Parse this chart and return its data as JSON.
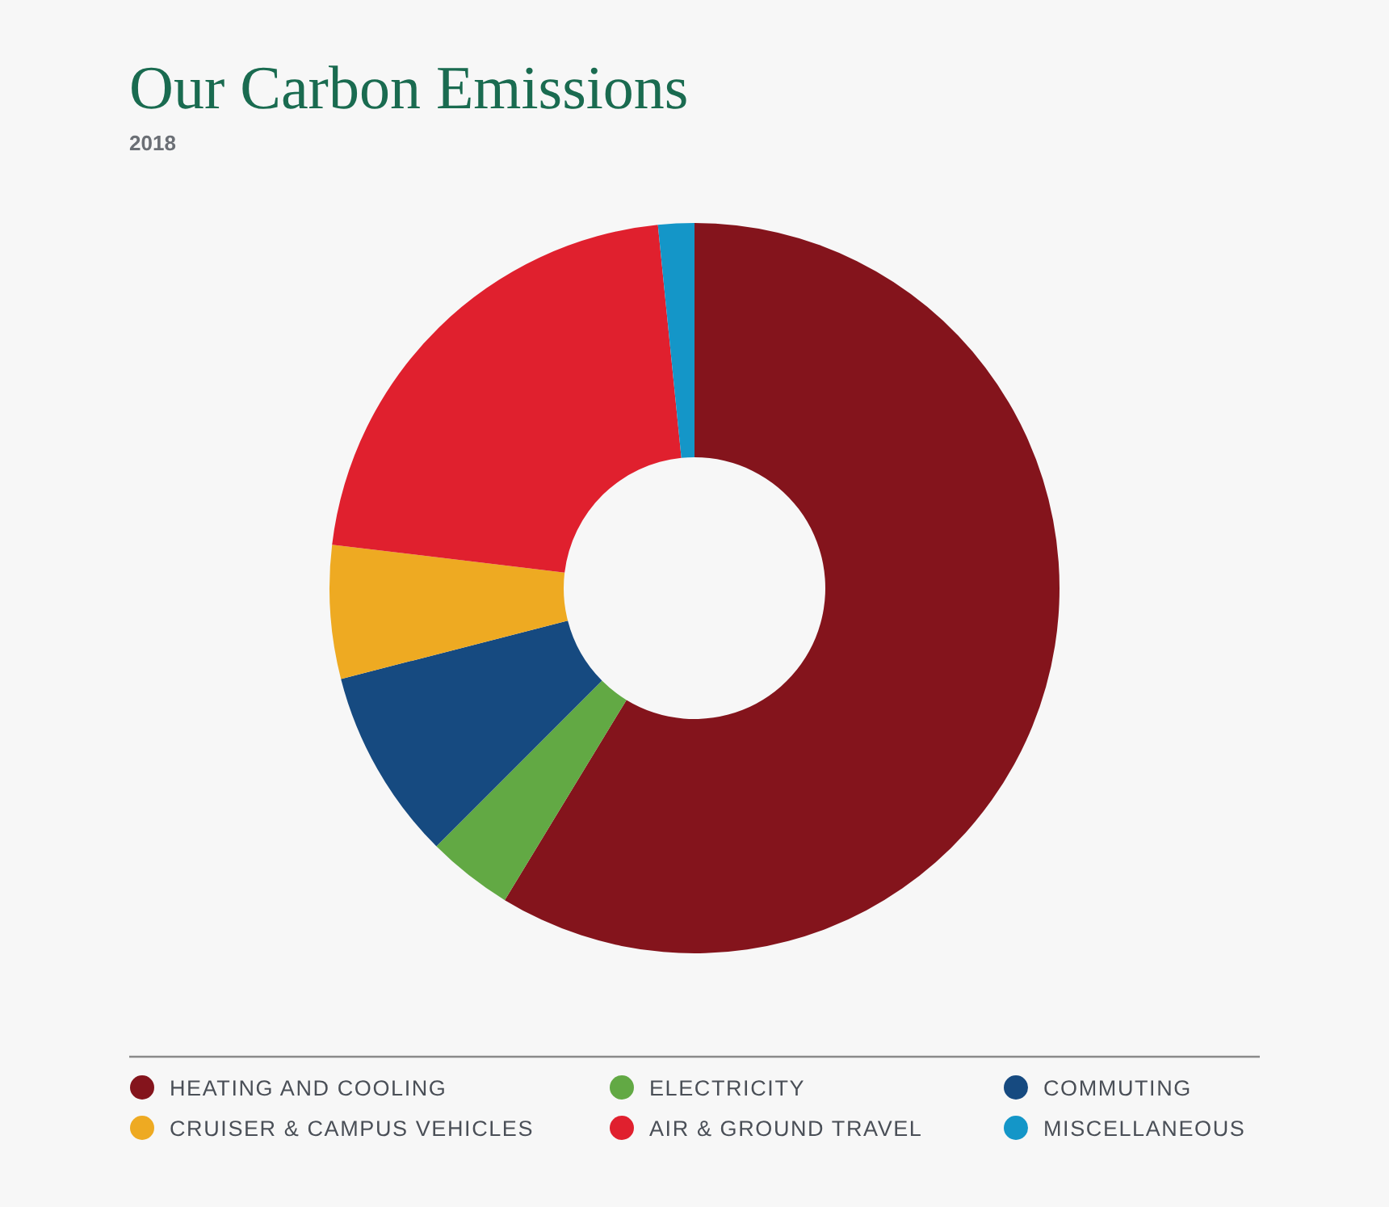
{
  "chart_data": {
    "type": "donut",
    "title": "Our Carbon Emissions",
    "subtitle": "2018",
    "categories": [
      "HEATING AND COOLING",
      "ELECTRICITY",
      "COMMUTING",
      "CRUISER & CAMPUS VEHICLES",
      "AIR & GROUND TRAVEL",
      "MISCELLANEOUS"
    ],
    "values": [
      58.7,
      3.8,
      8.5,
      5.9,
      21.5,
      1.6
    ],
    "colors": [
      "#84141c",
      "#62a944",
      "#164a80",
      "#eeaa22",
      "#e0202e",
      "#1496c8"
    ],
    "legend": "bottom"
  }
}
